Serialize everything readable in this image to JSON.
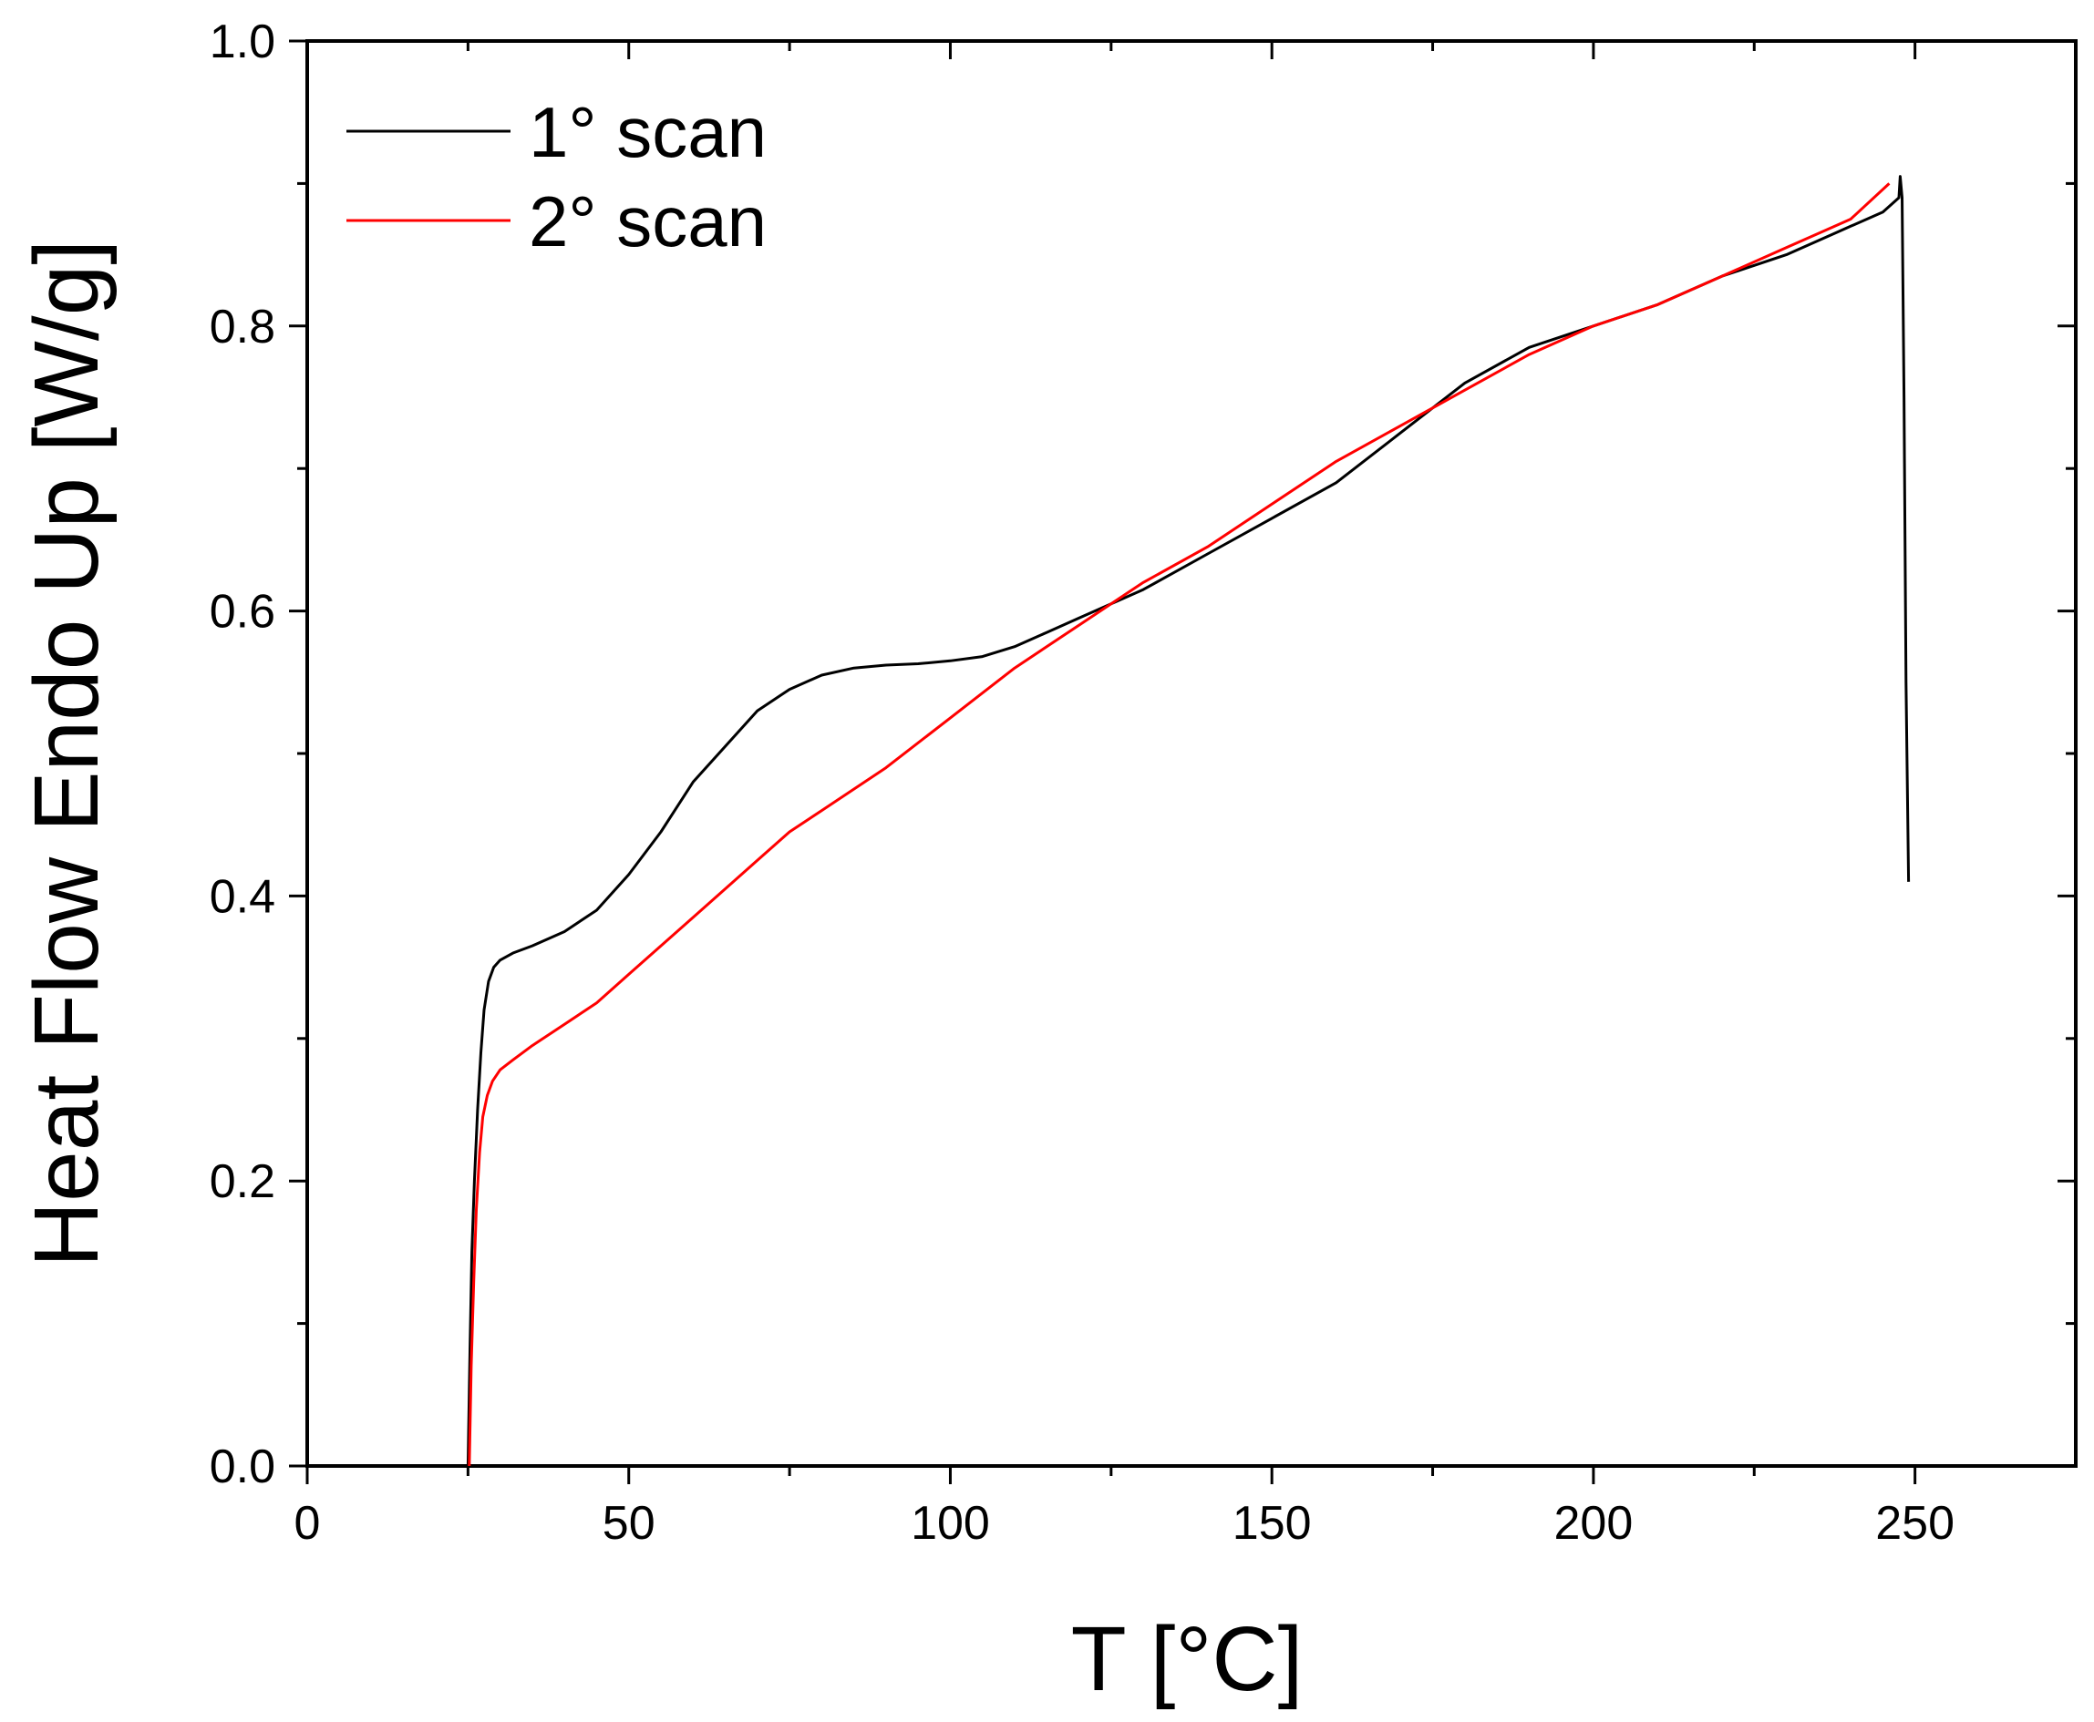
{
  "chart_data": {
    "type": "line",
    "xlabel": "T [°C]",
    "ylabel": "Heat Flow Endo Up [W/g]",
    "xlim": [
      0,
      275
    ],
    "ylim": [
      0.0,
      1.0
    ],
    "x_ticks": [
      0,
      50,
      100,
      150,
      200,
      250
    ],
    "x_tick_labels": [
      "0",
      "50",
      "100",
      "150",
      "200",
      "250"
    ],
    "y_ticks": [
      0.0,
      0.2,
      0.4,
      0.6,
      0.8,
      1.0
    ],
    "y_tick_labels": [
      "0.0",
      "0.2",
      "0.4",
      "0.6",
      "0.8",
      "1.0"
    ],
    "grid": false,
    "legend_position": "top-left",
    "series": [
      {
        "name": "1° scan",
        "color": "#000000",
        "x": [
          25.0,
          25.3,
          25.6,
          26.0,
          26.5,
          27.0,
          27.5,
          28.2,
          29.0,
          30.0,
          32.0,
          35.0,
          40.0,
          45.0,
          50.0,
          55.0,
          60.0,
          65.0,
          70.0,
          75.0,
          80.0,
          85.0,
          90.0,
          95.0,
          100.0,
          105.0,
          110.0,
          115.0,
          120.0,
          125.0,
          130.0,
          140.0,
          150.0,
          160.0,
          170.0,
          180.0,
          190.0,
          200.0,
          210.0,
          220.0,
          230.0,
          240.0,
          245.0,
          247.5,
          247.7,
          248.0,
          248.3,
          248.6,
          249.0
        ],
        "y": [
          0.0,
          0.08,
          0.15,
          0.2,
          0.25,
          0.29,
          0.32,
          0.34,
          0.35,
          0.355,
          0.36,
          0.365,
          0.375,
          0.39,
          0.415,
          0.445,
          0.48,
          0.505,
          0.53,
          0.545,
          0.555,
          0.56,
          0.562,
          0.563,
          0.565,
          0.568,
          0.575,
          0.585,
          0.595,
          0.605,
          0.615,
          0.64,
          0.665,
          0.69,
          0.725,
          0.76,
          0.785,
          0.8,
          0.815,
          0.835,
          0.85,
          0.87,
          0.88,
          0.89,
          0.905,
          0.89,
          0.75,
          0.55,
          0.41
        ]
      },
      {
        "name": "2° scan",
        "color": "#ff0000",
        "x": [
          25.2,
          25.5,
          25.9,
          26.3,
          26.8,
          27.3,
          28.0,
          28.8,
          30.0,
          32.0,
          35.0,
          40.0,
          45.0,
          50.0,
          55.0,
          60.0,
          65.0,
          70.0,
          75.0,
          80.0,
          90.0,
          100.0,
          110.0,
          120.0,
          130.0,
          140.0,
          150.0,
          160.0,
          170.0,
          180.0,
          190.0,
          200.0,
          210.0,
          220.0,
          230.0,
          240.0,
          246.0
        ],
        "y": [
          0.0,
          0.07,
          0.13,
          0.18,
          0.22,
          0.245,
          0.26,
          0.27,
          0.278,
          0.285,
          0.295,
          0.31,
          0.325,
          0.345,
          0.365,
          0.385,
          0.405,
          0.425,
          0.445,
          0.46,
          0.49,
          0.525,
          0.56,
          0.59,
          0.62,
          0.645,
          0.675,
          0.705,
          0.73,
          0.755,
          0.78,
          0.8,
          0.815,
          0.835,
          0.855,
          0.875,
          0.9
        ]
      }
    ]
  }
}
